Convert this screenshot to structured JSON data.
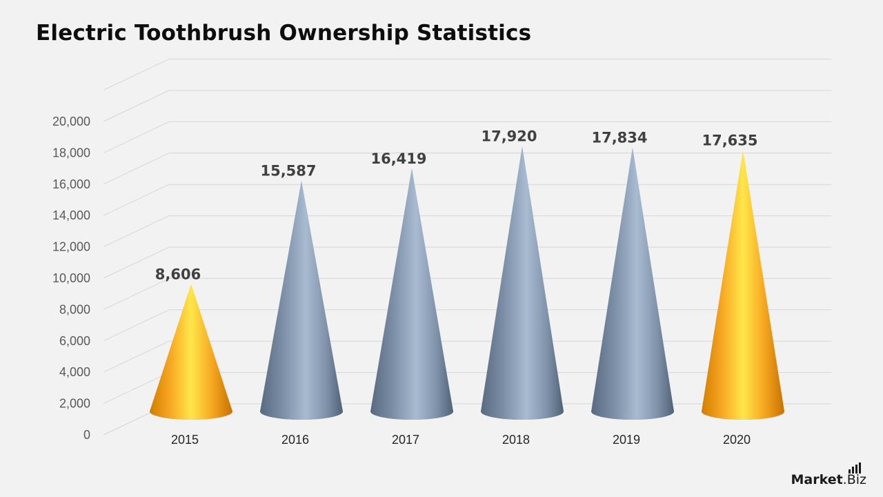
{
  "title": "Electric Toothbrush Ownership Statistics",
  "brand": {
    "main": "Market",
    "suffix": ".Biz"
  },
  "chart_data": {
    "type": "bar",
    "shape": "cone",
    "categories": [
      "2015",
      "2016",
      "2017",
      "2018",
      "2019",
      "2020"
    ],
    "values": [
      8606,
      15587,
      16419,
      17920,
      17834,
      17635
    ],
    "value_labels": [
      "8,606",
      "15,587",
      "16,419",
      "17,920",
      "17,834",
      "17,635"
    ],
    "y_ticks": [
      "0",
      "2,000",
      "4,000",
      "6,000",
      "8,000",
      "10,000",
      "12,000",
      "14,000",
      "16,000",
      "18,000",
      "20,000"
    ],
    "ylim": [
      0,
      20000
    ],
    "grid": true,
    "highlight_categories": [
      "2015",
      "2020"
    ],
    "colors": {
      "highlight": "#f7a823",
      "default": "#7f92aa"
    }
  }
}
